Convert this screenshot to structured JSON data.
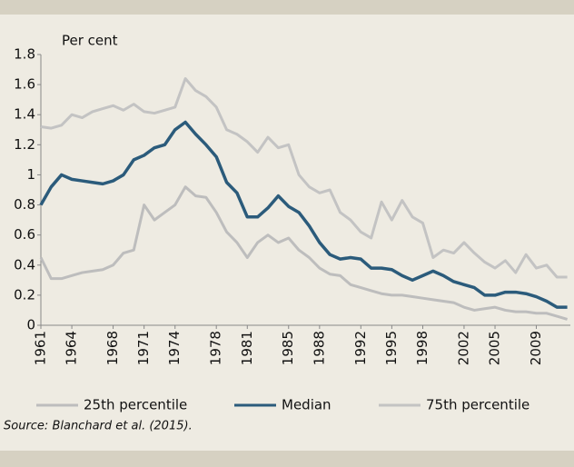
{
  "chart_data": {
    "type": "line",
    "y_label": "Per cent",
    "source": "Source: Blanchard et al. (2015).",
    "x": [
      1961,
      1962,
      1963,
      1964,
      1965,
      1966,
      1967,
      1968,
      1969,
      1970,
      1971,
      1972,
      1973,
      1974,
      1975,
      1976,
      1977,
      1978,
      1979,
      1980,
      1981,
      1982,
      1983,
      1984,
      1985,
      1986,
      1987,
      1988,
      1989,
      1990,
      1991,
      1992,
      1993,
      1994,
      1995,
      1996,
      1997,
      1998,
      1999,
      2000,
      2001,
      2002,
      2003,
      2004,
      2005,
      2006,
      2007,
      2008,
      2009,
      2010,
      2011,
      2012
    ],
    "series": [
      {
        "name": "25th percentile",
        "color": "#bdbdbd",
        "values": [
          0.45,
          0.31,
          0.31,
          0.33,
          0.35,
          0.36,
          0.37,
          0.4,
          0.48,
          0.5,
          0.8,
          0.7,
          0.75,
          0.8,
          0.92,
          0.86,
          0.85,
          0.75,
          0.62,
          0.55,
          0.45,
          0.55,
          0.6,
          0.55,
          0.58,
          0.5,
          0.45,
          0.38,
          0.34,
          0.33,
          0.27,
          0.25,
          0.23,
          0.21,
          0.2,
          0.2,
          0.19,
          0.18,
          0.17,
          0.16,
          0.15,
          0.12,
          0.1,
          0.11,
          0.12,
          0.1,
          0.09,
          0.09,
          0.08,
          0.08,
          0.06,
          0.04
        ]
      },
      {
        "name": "Median",
        "color": "#2b5b7b",
        "values": [
          0.8,
          0.92,
          1.0,
          0.97,
          0.96,
          0.95,
          0.94,
          0.96,
          1.0,
          1.1,
          1.13,
          1.18,
          1.2,
          1.3,
          1.35,
          1.27,
          1.2,
          1.12,
          0.95,
          0.88,
          0.72,
          0.72,
          0.78,
          0.86,
          0.79,
          0.75,
          0.66,
          0.55,
          0.47,
          0.44,
          0.45,
          0.44,
          0.38,
          0.38,
          0.37,
          0.33,
          0.3,
          0.33,
          0.36,
          0.33,
          0.29,
          0.27,
          0.25,
          0.2,
          0.2,
          0.22,
          0.22,
          0.21,
          0.19,
          0.16,
          0.12,
          0.12
        ]
      },
      {
        "name": "75th percentile",
        "color": "#c3c3c3",
        "values": [
          1.32,
          1.31,
          1.33,
          1.4,
          1.38,
          1.42,
          1.44,
          1.46,
          1.43,
          1.47,
          1.42,
          1.41,
          1.43,
          1.45,
          1.64,
          1.56,
          1.52,
          1.45,
          1.3,
          1.27,
          1.22,
          1.15,
          1.25,
          1.18,
          1.2,
          1.0,
          0.92,
          0.88,
          0.9,
          0.75,
          0.7,
          0.62,
          0.58,
          0.82,
          0.7,
          0.83,
          0.72,
          0.68,
          0.45,
          0.5,
          0.48,
          0.55,
          0.48,
          0.42,
          0.38,
          0.43,
          0.35,
          0.47,
          0.38,
          0.4,
          0.32,
          0.32
        ]
      }
    ],
    "xlim": [
      1961,
      2012.3
    ],
    "xticks": [
      1961,
      1964,
      1968,
      1971,
      1974,
      1978,
      1981,
      1985,
      1988,
      1992,
      1995,
      1998,
      2002,
      2005,
      2009
    ],
    "ylim": [
      0,
      1.8
    ],
    "yticks": [
      0,
      0.2,
      0.4,
      0.6,
      0.8,
      1,
      1.2,
      1.4,
      1.6,
      1.8
    ],
    "grid": false
  }
}
